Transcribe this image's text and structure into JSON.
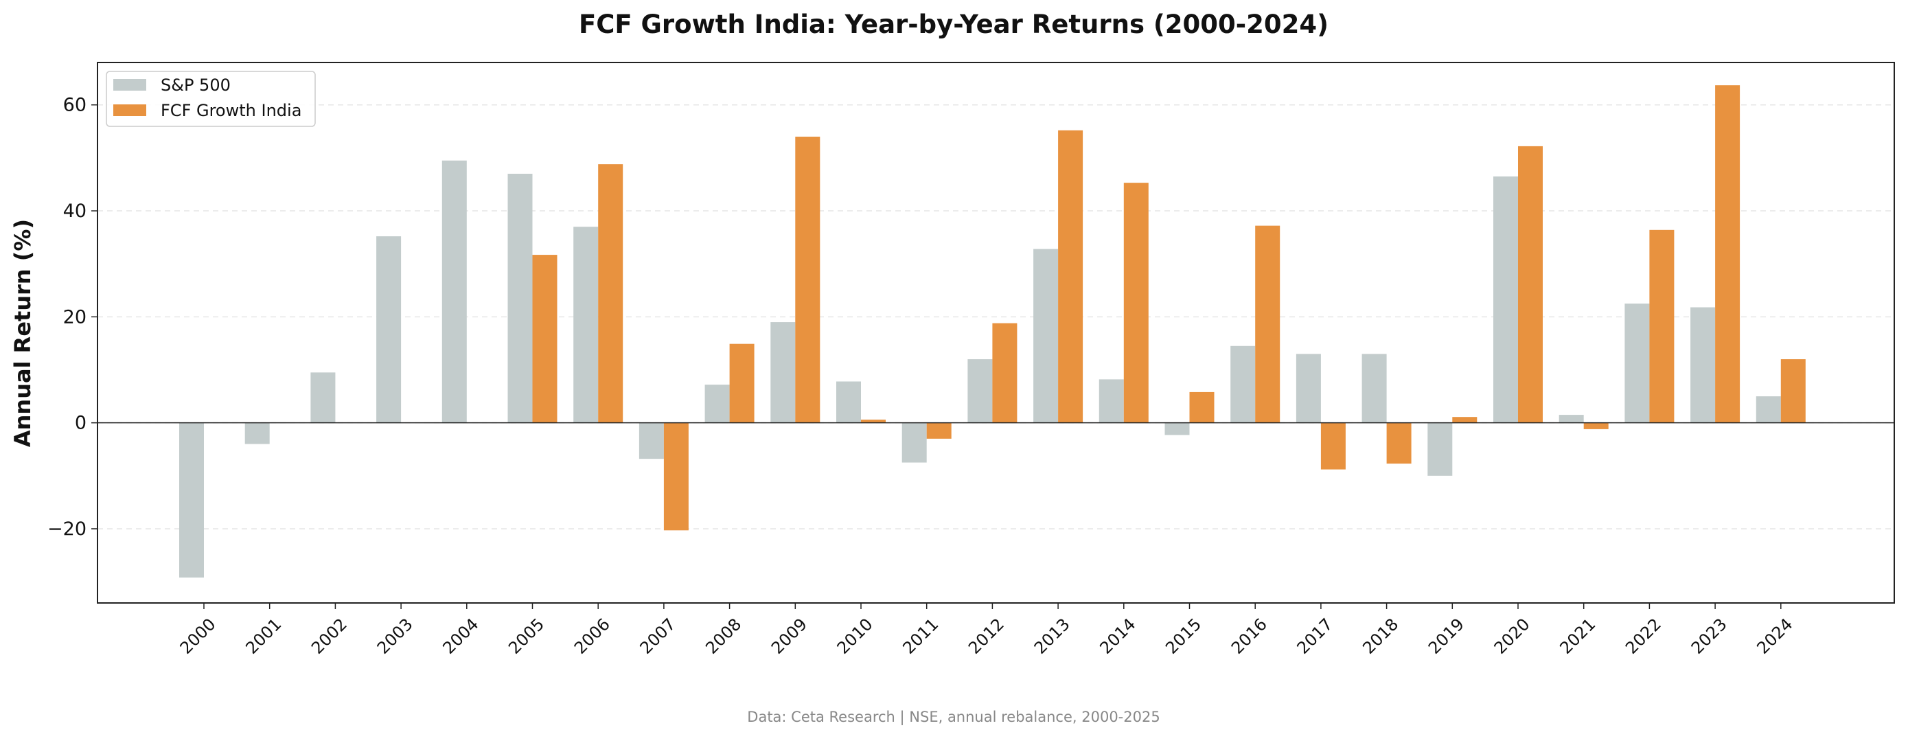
{
  "chart_data": {
    "type": "bar",
    "title": "FCF Growth India: Year-by-Year Returns (2000-2024)",
    "xlabel": "",
    "ylabel": "Annual Return (%)",
    "footnote": "Data: Ceta Research | NSE, annual rebalance, 2000-2025",
    "categories": [
      "2000",
      "2001",
      "2002",
      "2003",
      "2004",
      "2005",
      "2006",
      "2007",
      "2008",
      "2009",
      "2010",
      "2011",
      "2012",
      "2013",
      "2014",
      "2015",
      "2016",
      "2017",
      "2018",
      "2019",
      "2020",
      "2021",
      "2022",
      "2023",
      "2024"
    ],
    "series": [
      {
        "name": "S&P 500",
        "color": "#c3cccc",
        "values": [
          -29.2,
          -4.0,
          9.5,
          35.2,
          49.5,
          47.0,
          37.0,
          -6.8,
          7.2,
          19.0,
          7.8,
          -7.5,
          12.0,
          32.8,
          8.2,
          -2.3,
          14.5,
          13.0,
          13.0,
          -10.0,
          46.5,
          1.5,
          22.5,
          21.8,
          5.0
        ]
      },
      {
        "name": "FCF Growth India",
        "color": "#e8923f",
        "values": [
          null,
          null,
          null,
          null,
          null,
          31.7,
          48.8,
          -20.3,
          14.9,
          54.0,
          0.6,
          -3.0,
          18.8,
          55.2,
          45.3,
          5.8,
          37.2,
          -8.8,
          -7.7,
          1.1,
          52.2,
          -1.2,
          36.4,
          63.7,
          12.0
        ]
      }
    ],
    "ylim": [
      -34,
      68
    ],
    "yticks": [
      -20,
      0,
      20,
      40,
      60
    ],
    "ytick_labels": [
      "−20",
      "0",
      "20",
      "40",
      "60"
    ],
    "grid": "horizontal-dashed",
    "legend_position": "top-left"
  }
}
